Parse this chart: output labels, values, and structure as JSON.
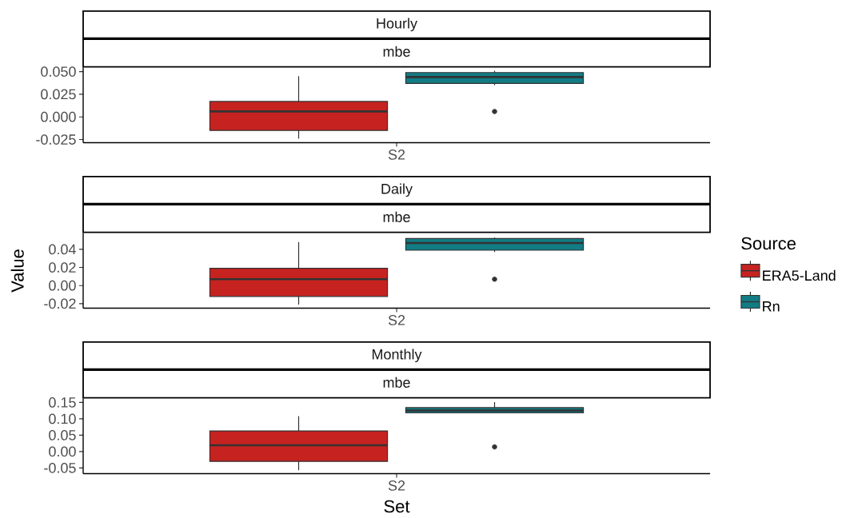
{
  "chart_data": [
    {
      "type": "box",
      "title": "Hourly",
      "subtitle": "mbe",
      "categories": [
        "S2"
      ],
      "series": [
        {
          "color": "#c62320",
          "boxes": [
            {
              "low": -0.024,
              "q1": -0.015,
              "median": 0.006,
              "q3": 0.017,
              "high": 0.045
            }
          ]
        },
        {
          "color": "#127c85",
          "boxes": [
            {
              "low": 0.035,
              "q1": 0.037,
              "median": 0.044,
              "q3": 0.049,
              "high": 0.051,
              "outliers": [
                0.006
              ]
            }
          ]
        }
      ],
      "ylim": [
        -0.0285,
        0.0545
      ],
      "yticks": [
        -0.025,
        {
          "value": 0,
          "label": "0.000"
        },
        0.025,
        {
          "value": 0.05,
          "label": "0.050"
        }
      ]
    },
    {
      "type": "box",
      "title": "Daily",
      "subtitle": "mbe",
      "categories": [
        "S2"
      ],
      "series": [
        {
          "name": "ERA5-Land",
          "color": "#c62320",
          "boxes": [
            {
              "low": -0.021,
              "q1": -0.012,
              "median": 0.007,
              "q3": 0.019,
              "high": 0.048
            }
          ]
        },
        {
          "name": "Rn",
          "color": "#127c85",
          "boxes": [
            {
              "low": 0.037,
              "q1": 0.039,
              "median": 0.047,
              "q3": 0.052,
              "high": 0.053,
              "outliers": [
                0.007
              ]
            }
          ]
        }
      ],
      "ylim": [
        -0.025,
        0.058
      ],
      "yticks": [
        -0.02,
        {
          "value": 0,
          "label": "0.00"
        },
        0.02,
        0.04
      ],
      "ylabel": "Value",
      "legend": "right",
      "legend_title": "Source"
    },
    {
      "type": "box",
      "title": "Monthly",
      "subtitle": "mbe",
      "categories": [
        "S2"
      ],
      "series": [
        {
          "color": "#c62320",
          "boxes": [
            {
              "low": -0.057,
              "q1": -0.03,
              "median": 0.019,
              "q3": 0.063,
              "high": 0.108
            }
          ]
        },
        {
          "color": "#127c85",
          "boxes": [
            {
              "low": 0.118,
              "q1": 0.118,
              "median": 0.125,
              "q3": 0.134,
              "high": 0.151,
              "outliers": [
                0.014
              ]
            }
          ]
        }
      ],
      "ylim": [
        -0.0675,
        0.162
      ],
      "yticks": [
        -0.05,
        {
          "value": 0,
          "label": "0.00"
        },
        0.05,
        {
          "value": 0.1,
          "label": "0.10"
        },
        0.15
      ],
      "xlabel": "Set"
    }
  ]
}
